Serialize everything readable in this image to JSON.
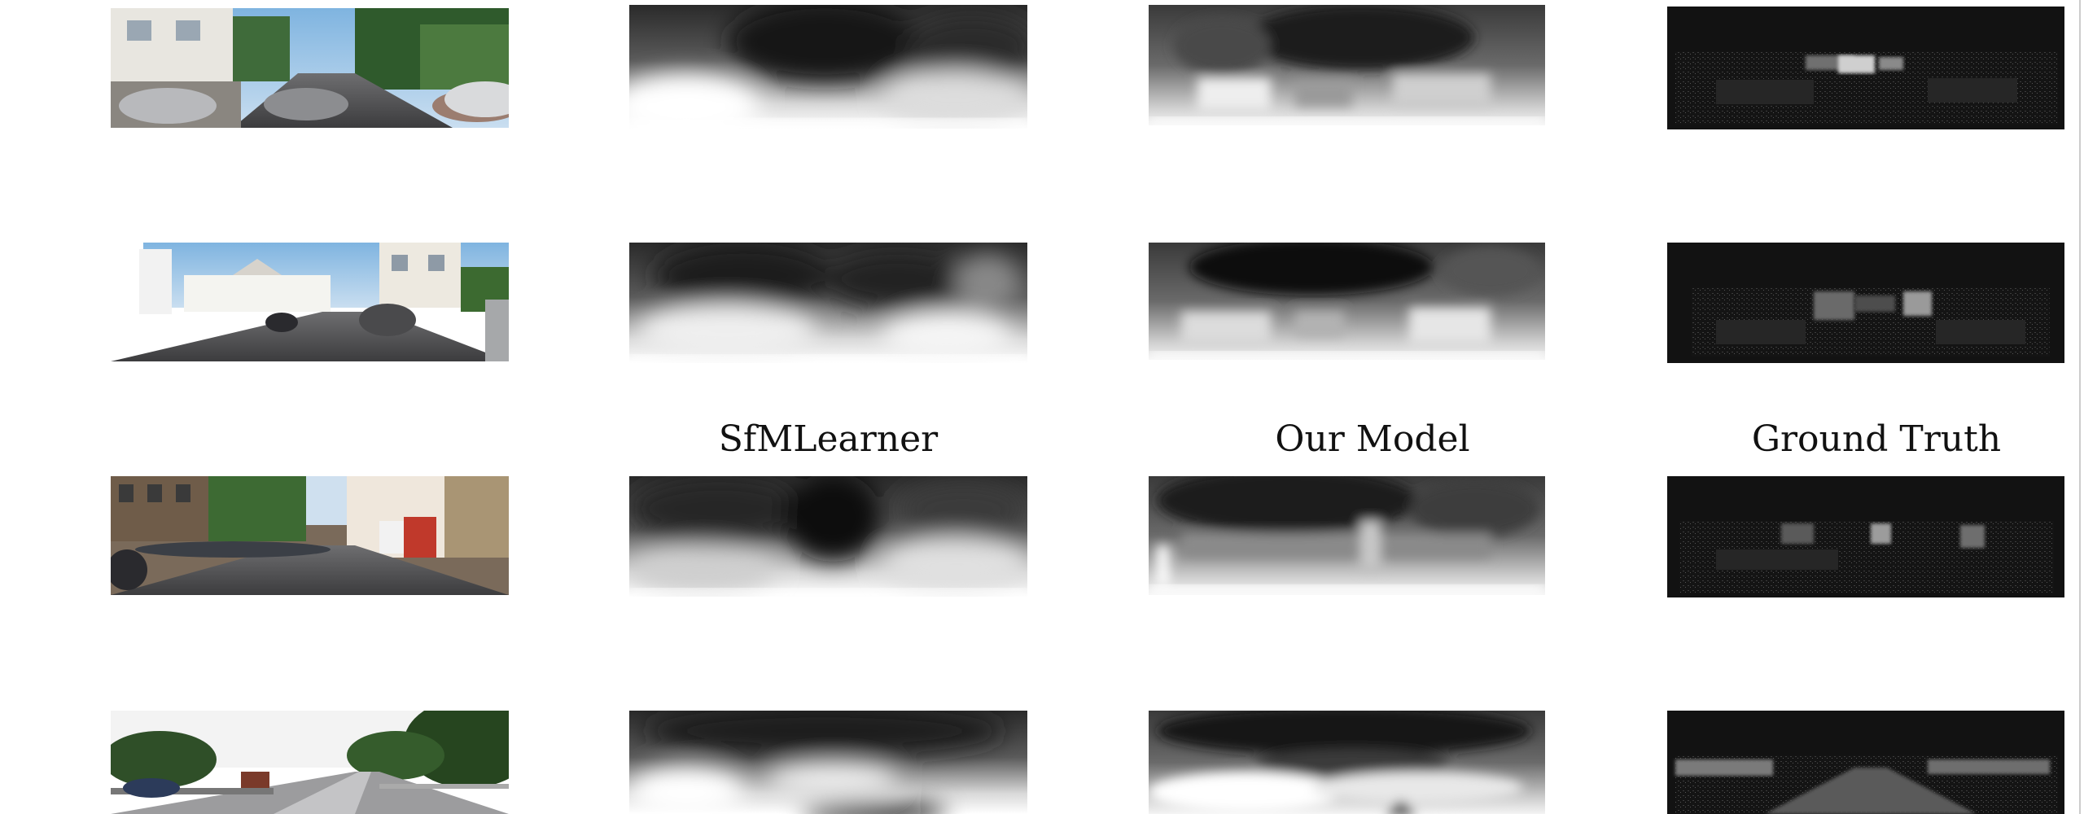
{
  "column_headers": {
    "sfmlearner": "SfMLearner",
    "our_model": "Our Model",
    "ground_truth": "Ground Truth"
  },
  "rows": [
    {
      "input": "street-scene-1",
      "sfmlearner": "depth-map",
      "our_model": "depth-map",
      "ground_truth": "sparse-lidar"
    },
    {
      "input": "street-scene-2",
      "sfmlearner": "depth-map",
      "our_model": "depth-map",
      "ground_truth": "sparse-lidar"
    },
    {
      "input": "street-scene-3",
      "sfmlearner": "depth-map",
      "our_model": "depth-map",
      "ground_truth": "sparse-lidar"
    },
    {
      "input": "highway-scene",
      "sfmlearner": "depth-map",
      "our_model": "depth-map",
      "ground_truth": "sparse-lidar"
    }
  ]
}
